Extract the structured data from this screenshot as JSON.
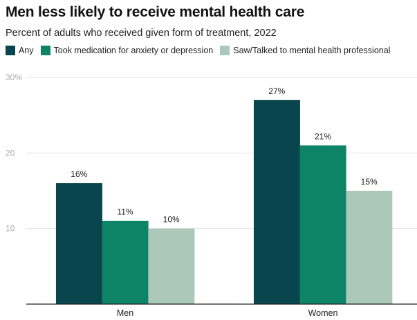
{
  "title": "Men less likely to receive mental health care",
  "subtitle": "Percent of adults who received given form of treatment, 2022",
  "chart_data": {
    "type": "bar",
    "title": "Men less likely to receive mental health care",
    "subtitle": "Percent of adults who received given form of treatment, 2022",
    "categories": [
      "Men",
      "Women"
    ],
    "series": [
      {
        "name": "Any",
        "values": [
          16,
          27
        ],
        "labels": [
          "16%",
          "27%"
        ],
        "color": "#09454d"
      },
      {
        "name": "Took medication for anxiety or depression",
        "values": [
          11,
          21
        ],
        "labels": [
          "11%",
          "21%"
        ],
        "color": "#0e8467"
      },
      {
        "name": "Saw/Talked to mental health professional",
        "values": [
          10,
          15
        ],
        "labels": [
          "10%",
          "15%"
        ],
        "color": "#abc8b8"
      }
    ],
    "ylim": [
      0,
      30
    ],
    "yticks": [
      10,
      20,
      30
    ],
    "ytick_labels": [
      "10",
      "20",
      "30%"
    ],
    "grid": true,
    "legend": "top-left",
    "xlabel": "",
    "ylabel": ""
  }
}
